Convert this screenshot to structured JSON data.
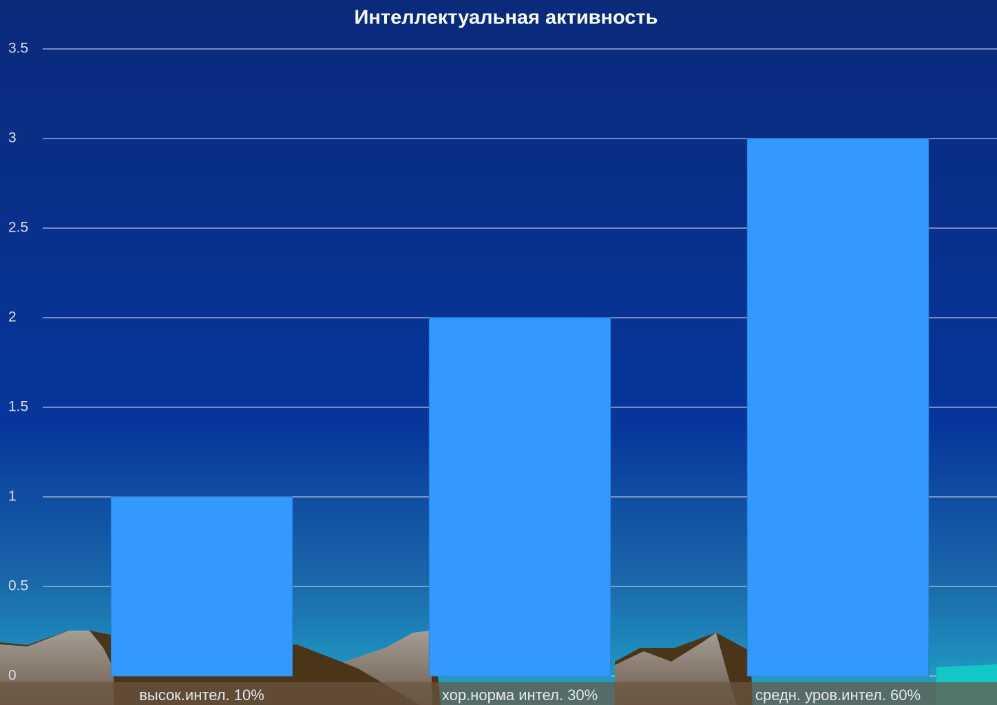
{
  "chart_data": {
    "type": "bar",
    "title": "Интеллектуальная  активность",
    "categories": [
      "высок.интел. 10%",
      "хор.норма интел. 30%",
      "средн. уров.интел. 60%"
    ],
    "values": [
      1,
      2,
      3
    ],
    "color": "#3399ff",
    "ylim": [
      0,
      3.5
    ],
    "yticks": [
      0,
      0.5,
      1,
      1.5,
      2,
      2.5,
      3,
      3.5
    ],
    "grid": true
  }
}
